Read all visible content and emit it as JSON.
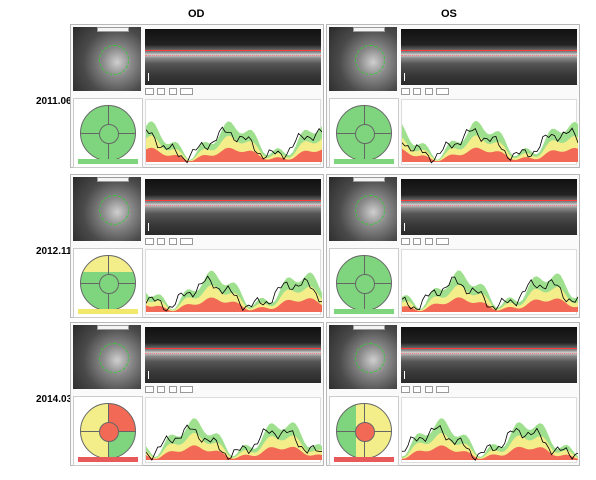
{
  "columns": [
    "OD",
    "OS"
  ],
  "dates": [
    "2011.06",
    "2012.11",
    "2014.03"
  ],
  "panels": [
    {
      "eye": "OD",
      "date": "2011.06",
      "classification": "Within Normal Limits",
      "class_color": "#7ed57e",
      "sectors": "normal"
    },
    {
      "eye": "OS",
      "date": "2011.06",
      "classification": "Within Normal Limits",
      "class_color": "#7ed57e",
      "sectors": "normal"
    },
    {
      "eye": "OD",
      "date": "2012.11",
      "classification": "Borderline",
      "class_color": "#f2e86c",
      "sectors": "borderline"
    },
    {
      "eye": "OS",
      "date": "2012.11",
      "classification": "Within Normal Limits",
      "class_color": "#7ed57e",
      "sectors": "normal"
    },
    {
      "eye": "OD",
      "date": "2014.03",
      "classification": "Outside Normal Limits",
      "class_color": "#e85a5a",
      "sectors": "abnormal"
    },
    {
      "eye": "OS",
      "date": "2014.03",
      "classification": "Outside Normal Limits",
      "class_color": "#e85a5a",
      "sectors": "abnormal"
    }
  ],
  "colors": {
    "green_band": "#9fe08f",
    "yellow_band": "#f3ee8a",
    "red_band": "#f26a55",
    "profile": "#000000",
    "ring": "#3ec43e",
    "scan_line": "#ff3a3a"
  }
}
